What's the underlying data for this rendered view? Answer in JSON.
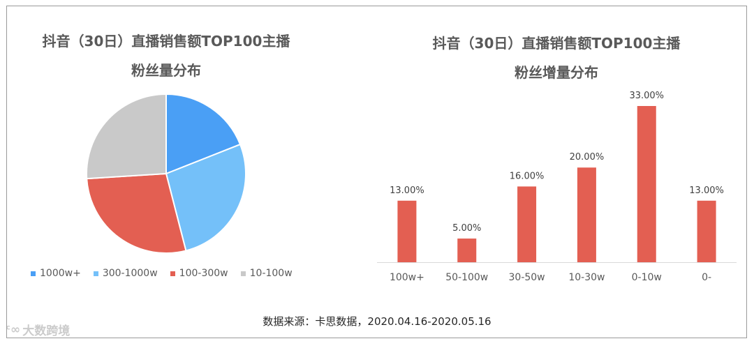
{
  "source_text": "数据来源：卡思数据，2020.04.16-2020.05.16",
  "watermark": "大数跨境",
  "chart_data": [
    {
      "type": "pie",
      "title_line1": "抖音（30日）直播销售额TOP100主播",
      "title_line2": "粉丝量分布",
      "categories": [
        "1000w+",
        "300-1000w",
        "100-300w",
        "10-100w"
      ],
      "values": [
        19,
        27,
        28,
        26
      ],
      "colors": [
        "#4a9ff5",
        "#74c0f9",
        "#e35f52",
        "#c9c9c9"
      ],
      "legend_position": "bottom"
    },
    {
      "type": "bar",
      "title_line1": "抖音（30日）直播销售额TOP100主播",
      "title_line2": "粉丝增量分布",
      "categories": [
        "100w+",
        "50-100w",
        "30-50w",
        "10-30w",
        "0-10w",
        "0-"
      ],
      "values": [
        13,
        5,
        16,
        20,
        33,
        13
      ],
      "labels": [
        "13.00%",
        "5.00%",
        "16.00%",
        "20.00%",
        "33.00%",
        "13.00%"
      ],
      "color": "#e35f52",
      "ylim": [
        0,
        33
      ],
      "grid": false
    }
  ]
}
